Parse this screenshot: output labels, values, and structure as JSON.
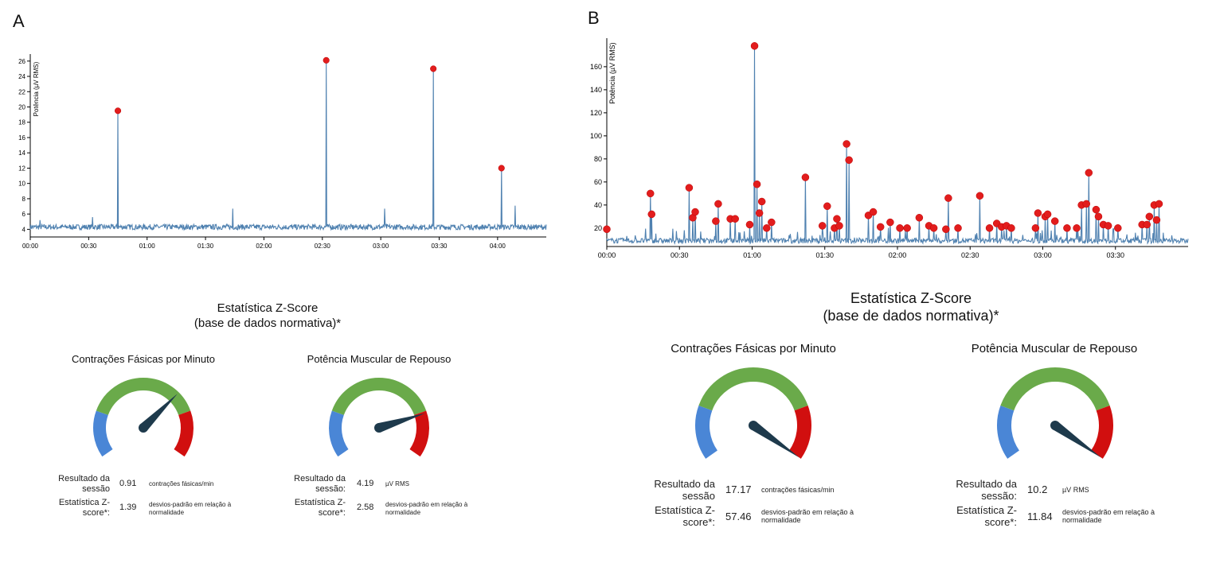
{
  "panels": [
    {
      "letter": "A",
      "chart_data": {
        "type": "line",
        "title": "",
        "xlabel": "",
        "ylabel": "Potência (µV RMS)",
        "x_ticks": [
          "00:00",
          "00:30",
          "01:00",
          "01:30",
          "02:00",
          "02:30",
          "03:00",
          "03:30",
          "04:00"
        ],
        "xlim_seconds": [
          0,
          265
        ],
        "ylim": [
          3,
          26.5
        ],
        "y_ticks": [
          4,
          6,
          8,
          10,
          12,
          14,
          16,
          18,
          20,
          22,
          24,
          26
        ],
        "baseline": 4.3,
        "spikes": [
          [
            5,
            5.2
          ],
          [
            32,
            5.6
          ],
          [
            45,
            19.4
          ],
          [
            104,
            6.7
          ],
          [
            152,
            26
          ],
          [
            182,
            6.7
          ],
          [
            207,
            25
          ],
          [
            242,
            12
          ],
          [
            249,
            7.1
          ]
        ],
        "peaks": [
          [
            45,
            19.5
          ],
          [
            152,
            26.1
          ],
          [
            207,
            25
          ],
          [
            242,
            12
          ]
        ],
        "line_color": "#4f81b0",
        "peak_color": "#e21d1d"
      },
      "stats": {
        "title_line1": "Estatística Z-Score",
        "title_line2": "(base de dados normativa)*",
        "gauges": [
          {
            "title": "Contrações Fásicas por Minuto",
            "needle_fraction": 0.68,
            "result_label": "Resultado da sessão",
            "result_value": "0.91",
            "result_unit": "contrações fásicas/min",
            "z_label": "Estatística Z-score*:",
            "z_value": "1.39",
            "z_unit": "desvios-padrão em relação à normalidade"
          },
          {
            "title": "Potência Muscular de Repouso",
            "needle_fraction": 0.79,
            "result_label": "Resultado da sessão:",
            "result_value": "4.19",
            "result_unit": "µV RMS",
            "z_label": "Estatística Z-score*:",
            "z_value": "2.58",
            "z_unit": "desvios-padrão em relação à normalidade"
          }
        ]
      }
    },
    {
      "letter": "B",
      "chart_data": {
        "type": "line",
        "title": "",
        "xlabel": "",
        "ylabel": "Potência (µV RMS)",
        "x_ticks": [
          "00:00",
          "00:30",
          "01:00",
          "01:30",
          "02:00",
          "02:30",
          "03:00",
          "03:30"
        ],
        "xlim_seconds": [
          0,
          240
        ],
        "ylim": [
          4,
          182
        ],
        "y_ticks": [
          20,
          40,
          60,
          80,
          100,
          120,
          140,
          160
        ],
        "baseline": 9,
        "spikes": [
          [
            18,
            50
          ],
          [
            18.5,
            32
          ],
          [
            34,
            55
          ],
          [
            35.5,
            29
          ],
          [
            36.5,
            34
          ],
          [
            45,
            26
          ],
          [
            46,
            41
          ],
          [
            51,
            28
          ],
          [
            53,
            28
          ],
          [
            59,
            23
          ],
          [
            61,
            178
          ],
          [
            62,
            58
          ],
          [
            63,
            33
          ],
          [
            64,
            43
          ],
          [
            66,
            20
          ],
          [
            68,
            25
          ],
          [
            82,
            64
          ],
          [
            89,
            22
          ],
          [
            91,
            39
          ],
          [
            94,
            20
          ],
          [
            95,
            28
          ],
          [
            96,
            22
          ],
          [
            99,
            93
          ],
          [
            100,
            79
          ],
          [
            108,
            31
          ],
          [
            110,
            34
          ],
          [
            113,
            21
          ],
          [
            117,
            25
          ],
          [
            121,
            20
          ],
          [
            124,
            20
          ],
          [
            129,
            29
          ],
          [
            133,
            22
          ],
          [
            135,
            20
          ],
          [
            140,
            19
          ],
          [
            141,
            46
          ],
          [
            145,
            20
          ],
          [
            154,
            48
          ],
          [
            158,
            20
          ],
          [
            161,
            24
          ],
          [
            163,
            21
          ],
          [
            165,
            22
          ],
          [
            167,
            20
          ],
          [
            177,
            20
          ],
          [
            178,
            33
          ],
          [
            181,
            30
          ],
          [
            182,
            32
          ],
          [
            185,
            26
          ],
          [
            190,
            20
          ],
          [
            194,
            20
          ],
          [
            196,
            40
          ],
          [
            198,
            41
          ],
          [
            199,
            68
          ],
          [
            202,
            36
          ],
          [
            203,
            30
          ],
          [
            205,
            23
          ],
          [
            207,
            22
          ],
          [
            211,
            20
          ],
          [
            221,
            23
          ],
          [
            223,
            23
          ],
          [
            224,
            30
          ],
          [
            226,
            40
          ],
          [
            227,
            27
          ],
          [
            228,
            41
          ]
        ],
        "peaks": [
          [
            0,
            19
          ],
          [
            18,
            50
          ],
          [
            18.5,
            32
          ],
          [
            34,
            55
          ],
          [
            35.5,
            29
          ],
          [
            36.5,
            34
          ],
          [
            45,
            26
          ],
          [
            46,
            41
          ],
          [
            51,
            28
          ],
          [
            53,
            28
          ],
          [
            59,
            23
          ],
          [
            61,
            178
          ],
          [
            62,
            58
          ],
          [
            63,
            33
          ],
          [
            64,
            43
          ],
          [
            66,
            20
          ],
          [
            68,
            25
          ],
          [
            82,
            64
          ],
          [
            89,
            22
          ],
          [
            91,
            39
          ],
          [
            94,
            20
          ],
          [
            95,
            28
          ],
          [
            96,
            22
          ],
          [
            99,
            93
          ],
          [
            100,
            79
          ],
          [
            108,
            31
          ],
          [
            110,
            34
          ],
          [
            113,
            21
          ],
          [
            117,
            25
          ],
          [
            121,
            20
          ],
          [
            124,
            20
          ],
          [
            129,
            29
          ],
          [
            133,
            22
          ],
          [
            135,
            20
          ],
          [
            140,
            19
          ],
          [
            141,
            46
          ],
          [
            145,
            20
          ],
          [
            154,
            48
          ],
          [
            158,
            20
          ],
          [
            161,
            24
          ],
          [
            163,
            21
          ],
          [
            165,
            22
          ],
          [
            167,
            20
          ],
          [
            177,
            20
          ],
          [
            178,
            33
          ],
          [
            181,
            30
          ],
          [
            182,
            32
          ],
          [
            185,
            26
          ],
          [
            190,
            20
          ],
          [
            194,
            20
          ],
          [
            196,
            40
          ],
          [
            198,
            41
          ],
          [
            199,
            68
          ],
          [
            202,
            36
          ],
          [
            203,
            30
          ],
          [
            205,
            23
          ],
          [
            207,
            22
          ],
          [
            211,
            20
          ],
          [
            221,
            23
          ],
          [
            223,
            23
          ],
          [
            224,
            30
          ],
          [
            226,
            40
          ],
          [
            227,
            27
          ],
          [
            228,
            41
          ]
        ],
        "line_color": "#4f81b0",
        "peak_color": "#e21d1d"
      },
      "stats": {
        "title_line1": "Estatística Z-Score",
        "title_line2": "(base de dados normativa)*",
        "gauges": [
          {
            "title": "Contrações Fásicas por Minuto",
            "needle_fraction": 1.0,
            "result_label": "Resultado da sessão",
            "result_value": "17.17",
            "result_unit": "contrações fásicas/min",
            "z_label": "Estatística Z-score*:",
            "z_value": "57.46",
            "z_unit": "desvios-padrão em relação à normalidade"
          },
          {
            "title": "Potência Muscular de Repouso",
            "needle_fraction": 1.0,
            "result_label": "Resultado da sessão:",
            "result_value": "10.2",
            "result_unit": "µV RMS",
            "z_label": "Estatística Z-score*:",
            "z_value": "11.84",
            "z_unit": "desvios-padrão em relação à normalidade"
          }
        ]
      }
    }
  ],
  "gauge_colors": {
    "low": "#4a86d6",
    "normal": "#6aaa4a",
    "high": "#d10f0f",
    "needle": "#1e3a4c"
  }
}
